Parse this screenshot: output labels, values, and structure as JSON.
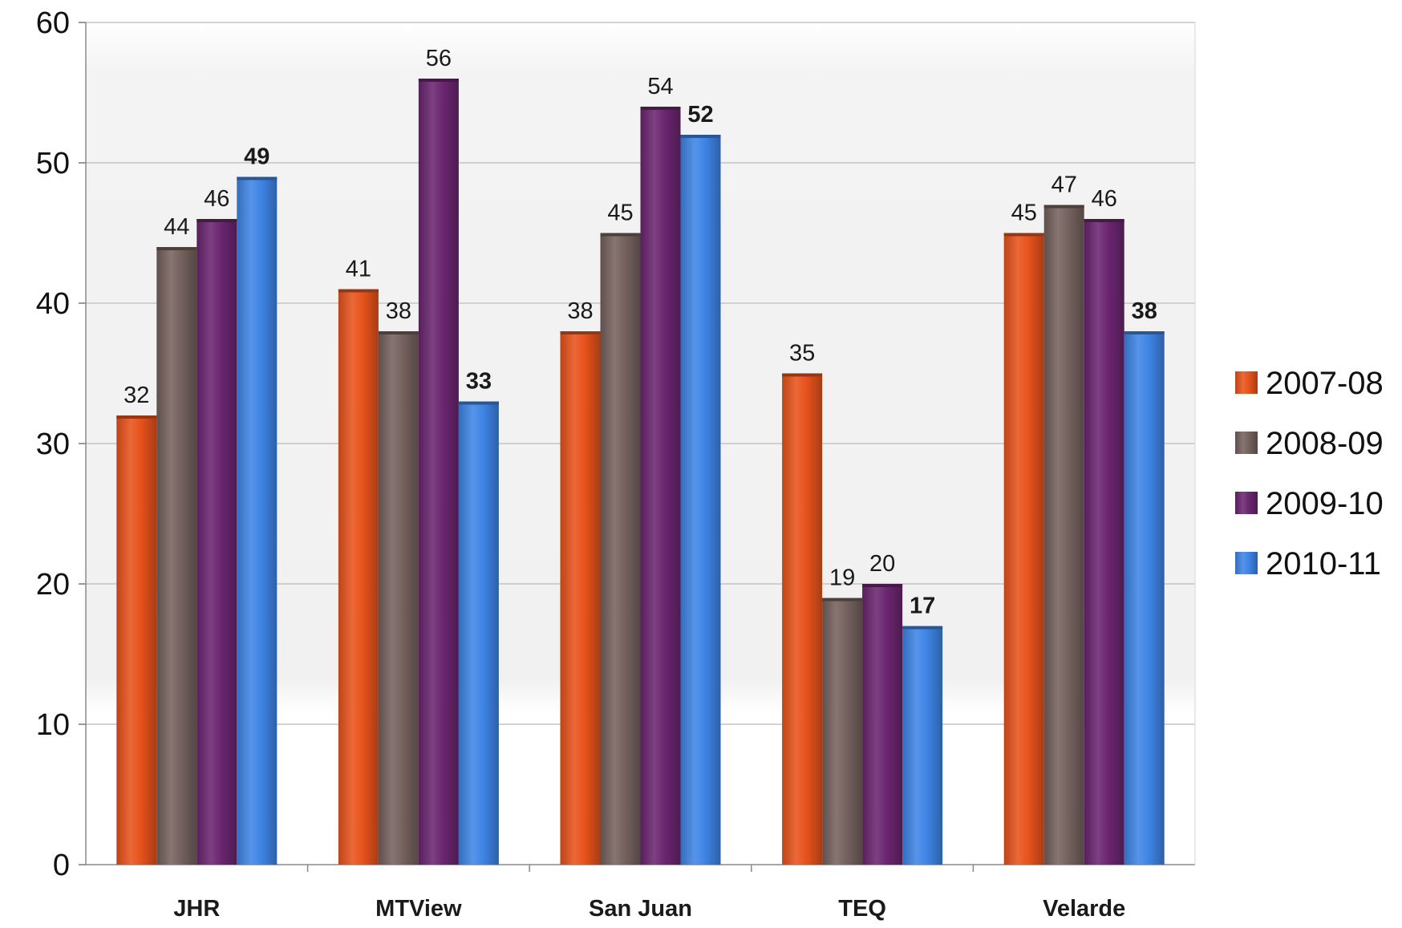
{
  "chart_data": {
    "type": "bar",
    "title": "",
    "xlabel": "",
    "ylabel": "",
    "ylim": [
      0,
      60
    ],
    "yticks": [
      0,
      10,
      20,
      30,
      40,
      50,
      60
    ],
    "grid": true,
    "legend_position": "right",
    "categories": [
      "JHR",
      "MTView",
      "San Juan",
      "TEQ",
      "Velarde"
    ],
    "series": [
      {
        "name": "2007-08",
        "color": "#e8531c",
        "values": [
          32,
          41,
          38,
          35,
          45
        ],
        "bold_labels": false
      },
      {
        "name": "2008-09",
        "color": "#75625e",
        "values": [
          44,
          38,
          45,
          19,
          47
        ],
        "bold_labels": false
      },
      {
        "name": "2009-10",
        "color": "#6b2670",
        "values": [
          46,
          56,
          54,
          20,
          46
        ],
        "bold_labels": false
      },
      {
        "name": "2010-11",
        "color": "#3f85e6",
        "values": [
          49,
          33,
          52,
          17,
          38
        ],
        "bold_labels": true
      }
    ]
  }
}
